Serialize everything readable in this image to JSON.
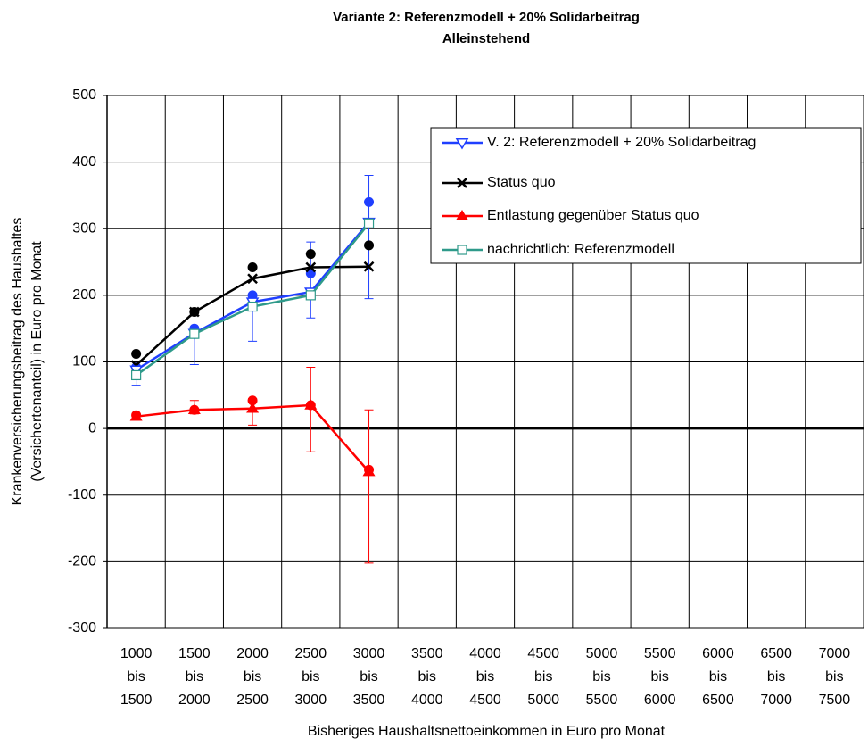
{
  "chart_data": {
    "type": "line",
    "title": "Variante 2: Referenzmodell + 20% Solidarbeitrag",
    "subtitle": "Alleinstehend",
    "y_label": [
      "Krankenversicherungsbeitrag des Haushaltes",
      "(Versichertenanteil) in Euro pro Monat"
    ],
    "x_label": "Bisheriges Haushaltsnettoeinkommen in Euro pro Monat",
    "categories": [
      [
        "1000",
        "bis",
        "1500"
      ],
      [
        "1500",
        "bis",
        "2000"
      ],
      [
        "2000",
        "bis",
        "2500"
      ],
      [
        "2500",
        "bis",
        "3000"
      ],
      [
        "3000",
        "bis",
        "3500"
      ],
      [
        "3500",
        "bis",
        "4000"
      ],
      [
        "4000",
        "bis",
        "4500"
      ],
      [
        "4500",
        "bis",
        "5000"
      ],
      [
        "5000",
        "bis",
        "5500"
      ],
      [
        "5500",
        "bis",
        "6000"
      ],
      [
        "6000",
        "bis",
        "6500"
      ],
      [
        "6500",
        "bis",
        "7000"
      ],
      [
        "7000",
        "bis",
        "7500"
      ]
    ],
    "ylim": [
      -300,
      500
    ],
    "yticks": [
      -300,
      -200,
      -100,
      0,
      100,
      200,
      300,
      400,
      500
    ],
    "grid": true,
    "legend": "upper right",
    "series": [
      {
        "name": "V. 2: Referenzmodell + 20% Solidarbeitrag",
        "color": "#1f3fff",
        "marker": "triangle-down-open",
        "values": [
          88,
          143,
          190,
          205,
          310,
          null,
          null,
          null,
          null,
          null,
          null,
          null,
          null
        ],
        "points": [
          92,
          150,
          200,
          233,
          340,
          null,
          null,
          null,
          null,
          null,
          null,
          null,
          null
        ],
        "error_low": [
          65,
          96,
          131,
          166,
          195,
          null,
          null,
          null,
          null,
          null,
          null,
          null,
          null
        ],
        "error_high": [
          95,
          150,
          200,
          280,
          380,
          null,
          null,
          null,
          null,
          null,
          null,
          null,
          null
        ]
      },
      {
        "name": "Status quo",
        "color": "#000000",
        "marker": "x",
        "values": [
          95,
          175,
          225,
          242,
          243,
          null,
          null,
          null,
          null,
          null,
          null,
          null,
          null
        ],
        "points": [
          112,
          175,
          242,
          262,
          275,
          null,
          null,
          null,
          null,
          null,
          null,
          null,
          null
        ]
      },
      {
        "name": "Entlastung gegenüber Status quo",
        "color": "#ff0000",
        "marker": "triangle-up",
        "values": [
          18,
          28,
          30,
          35,
          -65,
          null,
          null,
          null,
          null,
          null,
          null,
          null,
          null
        ],
        "points": [
          20,
          28,
          42,
          35,
          -62,
          null,
          null,
          null,
          null,
          null,
          null,
          null,
          null
        ],
        "error_low": [
          15,
          22,
          5,
          -35,
          -202,
          null,
          null,
          null,
          null,
          null,
          null,
          null,
          null
        ],
        "error_high": [
          22,
          42,
          45,
          92,
          28,
          null,
          null,
          null,
          null,
          null,
          null,
          null,
          null
        ]
      },
      {
        "name": "nachrichtlich: Referenzmodell",
        "color": "#2e9a8a",
        "marker": "square-open",
        "values": [
          80,
          142,
          183,
          200,
          308,
          null,
          null,
          null,
          null,
          null,
          null,
          null,
          null
        ]
      }
    ]
  }
}
